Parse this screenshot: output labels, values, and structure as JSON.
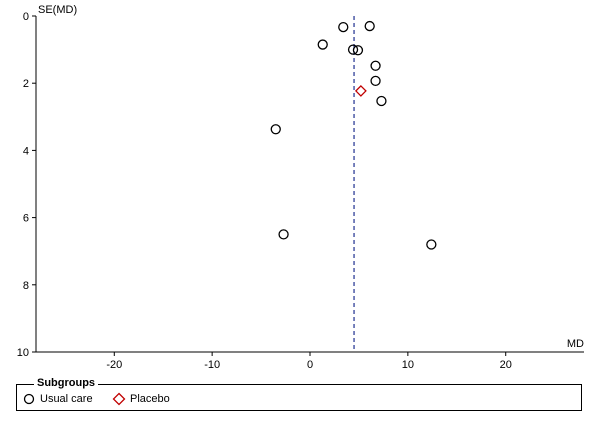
{
  "chart_data": {
    "type": "scatter",
    "title": "",
    "xlabel": "MD",
    "ylabel": "SE(MD)",
    "xlim": [
      -28,
      28
    ],
    "ylim": [
      0,
      10
    ],
    "y_reversed": true,
    "x_ticks": [
      -20,
      -10,
      0,
      10,
      20
    ],
    "y_ticks": [
      0,
      2,
      4,
      6,
      8,
      10
    ],
    "reference_line_x": 4.5,
    "series": [
      {
        "name": "Usual care",
        "marker": "circle",
        "color": "#000000",
        "points": [
          {
            "x": 3.4,
            "y": 0.33
          },
          {
            "x": 6.1,
            "y": 0.3
          },
          {
            "x": 1.3,
            "y": 0.85
          },
          {
            "x": 4.4,
            "y": 1.0
          },
          {
            "x": 4.9,
            "y": 1.02
          },
          {
            "x": 6.7,
            "y": 1.48
          },
          {
            "x": 6.7,
            "y": 1.93
          },
          {
            "x": 7.3,
            "y": 2.53
          },
          {
            "x": -3.5,
            "y": 3.37
          },
          {
            "x": -2.7,
            "y": 6.5
          },
          {
            "x": 12.4,
            "y": 6.8
          }
        ]
      },
      {
        "name": "Placebo",
        "marker": "diamond",
        "color": "#c00000",
        "points": [
          {
            "x": 5.2,
            "y": 2.23
          }
        ]
      }
    ],
    "legend": {
      "title": "Subgroups",
      "position": "bottom",
      "items": [
        "Usual care",
        "Placebo"
      ]
    }
  }
}
